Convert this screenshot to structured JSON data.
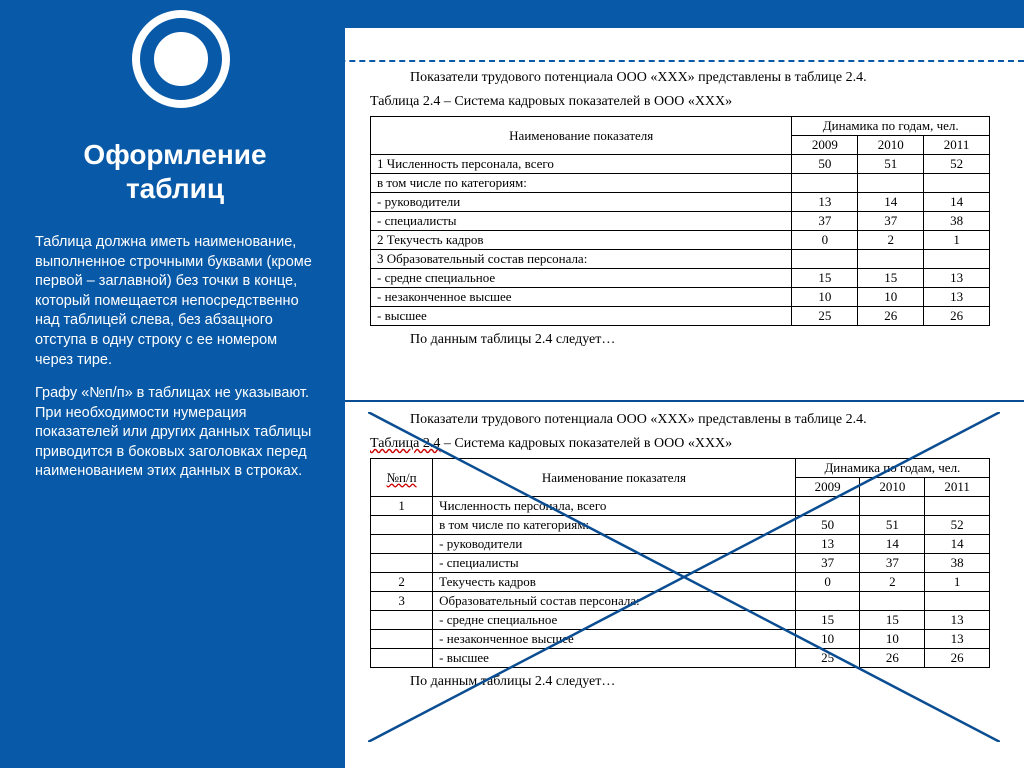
{
  "colors": {
    "primary": "#085aa8",
    "white": "#ffffff",
    "black": "#000000",
    "cross": "#0a4d92",
    "wavy": "#cc0000"
  },
  "sidebar": {
    "title": "Оформление таблиц",
    "para1": "Таблица должна иметь наименование, выполненное строчными буквами (кроме первой – заглавной) без точки в конце, который помещается непосредственно над таблицей слева, без абзацного отступа в одну строку с ее номером через тире.",
    "para2": "Графу «№п/п» в таблицах не указывают. При необходимости нумерация показателей или других данных таблицы приводится в боковых заголовках перед наименованием этих данных в строках."
  },
  "doc1": {
    "intro": "Показатели трудового потенциала ООО «ХХХ» представлены в таблице 2.4.",
    "caption": "Таблица  2.4 – Система кадровых показателей в ООО «ХХХ»",
    "header_name": "Наименование показателя",
    "header_dyn": "Динамика по годам, чел.",
    "years": [
      "2009",
      "2010",
      "2011"
    ],
    "rows": [
      {
        "label": "1 Численность персонала, всего",
        "vals": [
          "50",
          "51",
          "52"
        ]
      },
      {
        "label": "в том числе по категориям:",
        "vals": [
          "",
          "",
          ""
        ]
      },
      {
        "label": "- руководители",
        "vals": [
          "13",
          "14",
          "14"
        ]
      },
      {
        "label": "- специалисты",
        "vals": [
          "37",
          "37",
          "38"
        ]
      },
      {
        "label": "2 Текучесть кадров",
        "vals": [
          "0",
          "2",
          "1"
        ]
      },
      {
        "label": "3 Образовательный состав персонала:",
        "vals": [
          "",
          "",
          ""
        ]
      },
      {
        "label": "- средне специальное",
        "vals": [
          "15",
          "15",
          "13"
        ]
      },
      {
        "label": "- незаконченное высшее",
        "vals": [
          "10",
          "10",
          "13"
        ]
      },
      {
        "label": "- высшее",
        "vals": [
          "25",
          "26",
          "26"
        ]
      }
    ],
    "after": "По данным таблицы 2.4 следует…"
  },
  "doc2": {
    "intro": "Показатели трудового потенциала ООО «ХХХ» представлены в таблице 2.4.",
    "caption_a": "Таблица  2.4",
    "caption_b": " – Система кадровых показателей в ООО «ХХХ»",
    "col_num": "№п/п",
    "header_name": "Наименование показателя",
    "header_dyn": "Динамика по годам, чел.",
    "years": [
      "2009",
      "2010",
      "2011"
    ],
    "rows": [
      {
        "n": "1",
        "label": "Численность персонала, всего",
        "vals": [
          "",
          "",
          ""
        ]
      },
      {
        "n": "",
        "label": "в том числе по категориям:",
        "vals": [
          "50",
          "51",
          "52"
        ]
      },
      {
        "n": "",
        "label": "- руководители",
        "vals": [
          "13",
          "14",
          "14"
        ]
      },
      {
        "n": "",
        "label": "- специалисты",
        "vals": [
          "37",
          "37",
          "38"
        ]
      },
      {
        "n": "2",
        "label": "Текучесть кадров",
        "vals": [
          "0",
          "2",
          "1"
        ]
      },
      {
        "n": "3",
        "label": "Образовательный состав персонала:",
        "vals": [
          "",
          "",
          ""
        ]
      },
      {
        "n": "",
        "label": "- средне специальное",
        "vals": [
          "15",
          "15",
          "13"
        ]
      },
      {
        "n": "",
        "label": "- незаконченное высшее",
        "vals": [
          "10",
          "10",
          "13"
        ]
      },
      {
        "n": "",
        "label": "- высшее",
        "vals": [
          "25",
          "26",
          "26"
        ]
      }
    ],
    "after": "По данным таблицы 2.4 следует…"
  }
}
